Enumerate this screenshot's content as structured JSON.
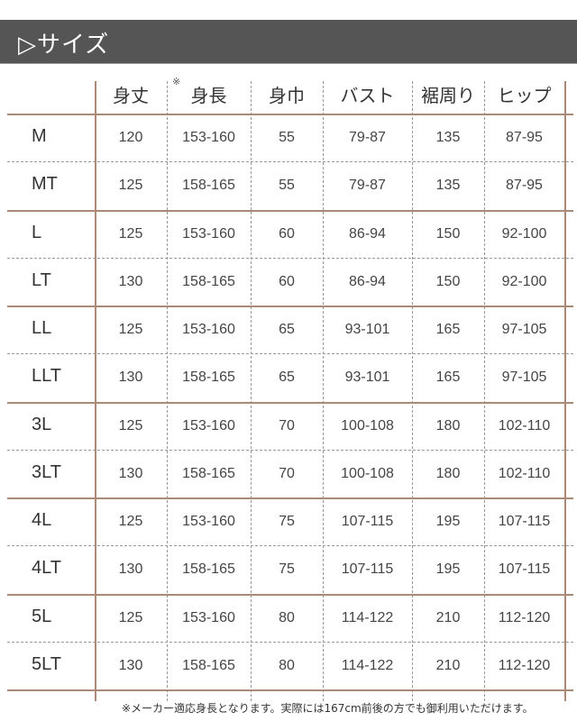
{
  "title": "▷サイズ",
  "table": {
    "header_mark": "※",
    "columns": [
      "身丈",
      "身長",
      "身巾",
      "バスト",
      "裾周り",
      "ヒップ"
    ],
    "rows": [
      {
        "size": "M",
        "values": [
          "120",
          "153-160",
          "55",
          "79-87",
          "135",
          "87-95"
        ]
      },
      {
        "size": "MT",
        "values": [
          "125",
          "158-165",
          "55",
          "79-87",
          "135",
          "87-95"
        ]
      },
      {
        "size": "L",
        "values": [
          "125",
          "153-160",
          "60",
          "86-94",
          "150",
          "92-100"
        ]
      },
      {
        "size": "LT",
        "values": [
          "130",
          "158-165",
          "60",
          "86-94",
          "150",
          "92-100"
        ]
      },
      {
        "size": "LL",
        "values": [
          "125",
          "153-160",
          "65",
          "93-101",
          "165",
          "97-105"
        ]
      },
      {
        "size": "LLT",
        "values": [
          "130",
          "158-165",
          "65",
          "93-101",
          "165",
          "97-105"
        ]
      },
      {
        "size": "3L",
        "values": [
          "125",
          "153-160",
          "70",
          "100-108",
          "180",
          "102-110"
        ]
      },
      {
        "size": "3LT",
        "values": [
          "130",
          "158-165",
          "70",
          "100-108",
          "180",
          "102-110"
        ]
      },
      {
        "size": "4L",
        "values": [
          "125",
          "153-160",
          "75",
          "107-115",
          "195",
          "107-115"
        ]
      },
      {
        "size": "4LT",
        "values": [
          "130",
          "158-165",
          "75",
          "107-115",
          "195",
          "107-115"
        ]
      },
      {
        "size": "5L",
        "values": [
          "125",
          "153-160",
          "80",
          "114-122",
          "210",
          "112-120"
        ]
      },
      {
        "size": "5LT",
        "values": [
          "130",
          "158-165",
          "80",
          "114-122",
          "210",
          "112-120"
        ]
      }
    ]
  },
  "footnote": "※メーカー適応身長となります。実際には167cm前後の方でも御利用いただけます。",
  "colors": {
    "title_bar": "#555555",
    "rule": "#a88a77"
  }
}
